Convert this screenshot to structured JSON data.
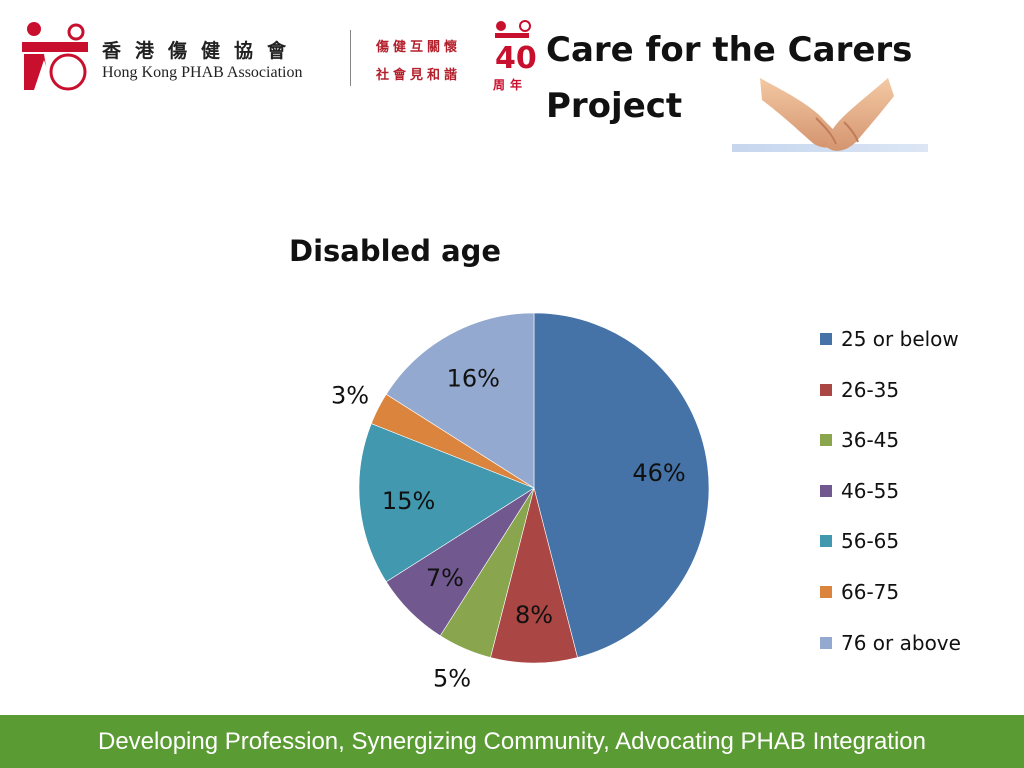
{
  "header": {
    "org_name_zh": "香港傷健協會",
    "org_name_en": "Hong Kong PHAB Association",
    "slogan_line1": "傷健互關懷",
    "slogan_line2": "社會見和諧",
    "anniversary_number": "40",
    "anniversary_text": "周年",
    "project_title_line1": "Care for the Carers",
    "project_title_line2": "Project"
  },
  "colors": {
    "brand_red": "#c8102e",
    "footer_green": "#5b9b33"
  },
  "chart_data": {
    "type": "pie",
    "title": "Disabled age",
    "legend_position": "right",
    "categories": [
      "25 or below",
      "26-35",
      "36-45",
      "46-55",
      "56-65",
      "66-75",
      "76 or above"
    ],
    "values": [
      46,
      8,
      5,
      7,
      15,
      3,
      16
    ],
    "labels": [
      "46%",
      "8%",
      "5%",
      "7%",
      "15%",
      "3%",
      "16%"
    ],
    "colors": [
      "#4572a7",
      "#aa4643",
      "#89a54e",
      "#71588f",
      "#4198af",
      "#db843d",
      "#93a9cf"
    ]
  },
  "footer": {
    "tagline": "Developing Profession, Synergizing Community, Advocating PHAB Integration"
  }
}
